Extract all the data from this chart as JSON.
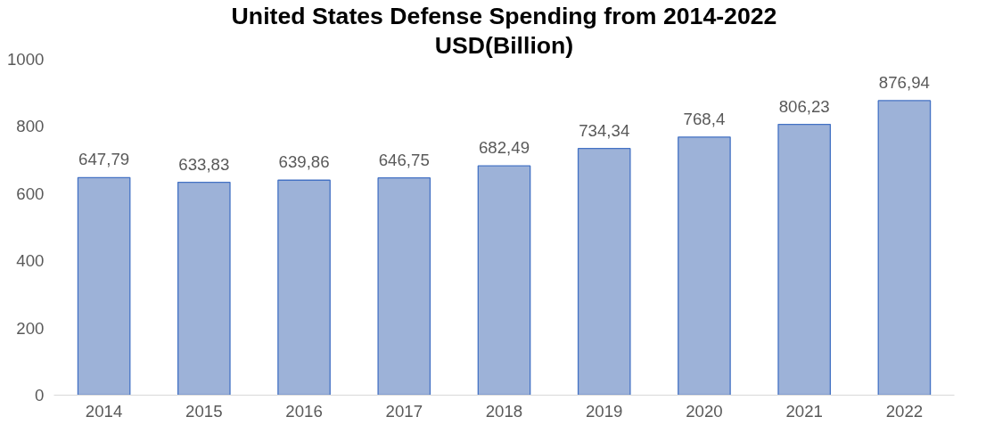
{
  "chart_data": {
    "type": "bar",
    "title": "United States Defense Spending from 2014-2022",
    "subtitle": "USD(Billion)",
    "categories": [
      "2014",
      "2015",
      "2016",
      "2017",
      "2018",
      "2019",
      "2020",
      "2021",
      "2022"
    ],
    "values": [
      647.79,
      633.83,
      639.86,
      646.75,
      682.49,
      734.34,
      768.4,
      806.23,
      876.94
    ],
    "value_labels": [
      "647,79",
      "633,83",
      "639,86",
      "646,75",
      "682,49",
      "734,34",
      "768,4",
      "806,23",
      "876,94"
    ],
    "color": "#9db2d8",
    "ylim": [
      0,
      1000
    ],
    "yticks": [
      0,
      200,
      400,
      600,
      800,
      1000
    ],
    "grid": false
  }
}
